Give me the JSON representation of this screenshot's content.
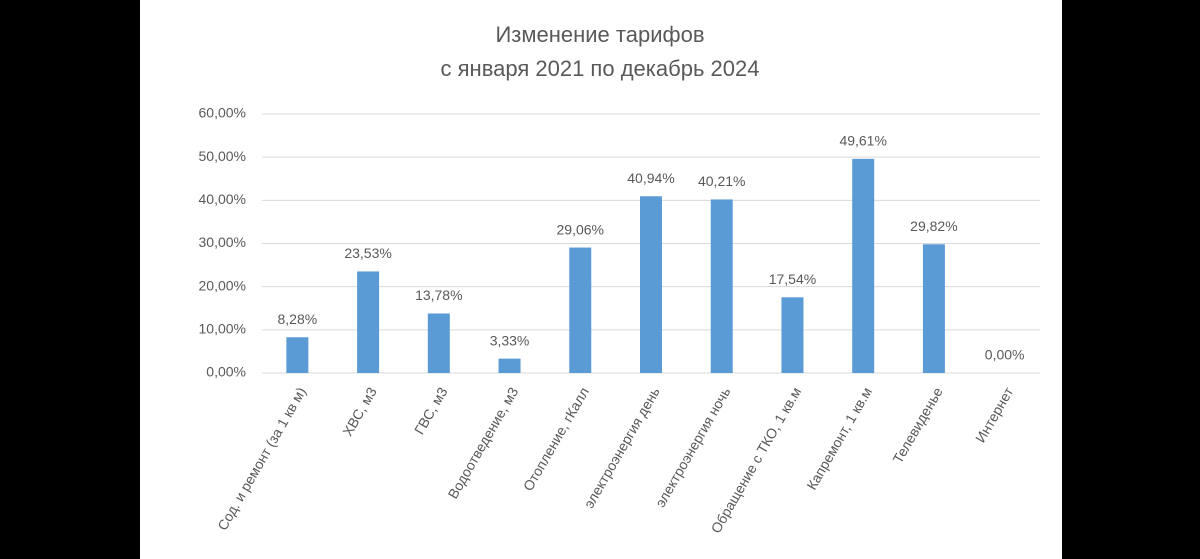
{
  "chart_data": {
    "type": "bar",
    "title": "Изменение тарифов",
    "subtitle": "с января 2021 по декабрь 2024",
    "categories": [
      "Сод. и ремонт (за 1 кв м)",
      "ХВС, м3",
      "ГВС, м3",
      "Водоотведение, м3",
      "Отопление, гКалл",
      "электроэнергия день",
      "электроэнергия ночь",
      "Обращение с ТКО, 1 кв.м",
      "Капремонт, 1 кв.м",
      "Телевиденье",
      "Интернет"
    ],
    "values": [
      8.28,
      23.53,
      13.78,
      3.33,
      29.06,
      40.94,
      40.21,
      17.54,
      49.61,
      29.82,
      0
    ],
    "value_labels": [
      "8,28%",
      "23,53%",
      "13,78%",
      "3,33%",
      "29,06%",
      "40,94%",
      "40,21%",
      "17,54%",
      "49,61%",
      "29,82%",
      "0,00%"
    ],
    "color": "#5b9bd5",
    "ylim": [
      0,
      60
    ],
    "yticks": [
      {
        "value": 0,
        "label": "0,00%"
      },
      {
        "value": 10,
        "label": "10,00%"
      },
      {
        "value": 20,
        "label": "20,00%"
      },
      {
        "value": 30,
        "label": "30,00%"
      },
      {
        "value": 40,
        "label": "40,00%"
      },
      {
        "value": 50,
        "label": "50,00%"
      },
      {
        "value": 60,
        "label": "60,00%"
      }
    ],
    "grid": true
  }
}
